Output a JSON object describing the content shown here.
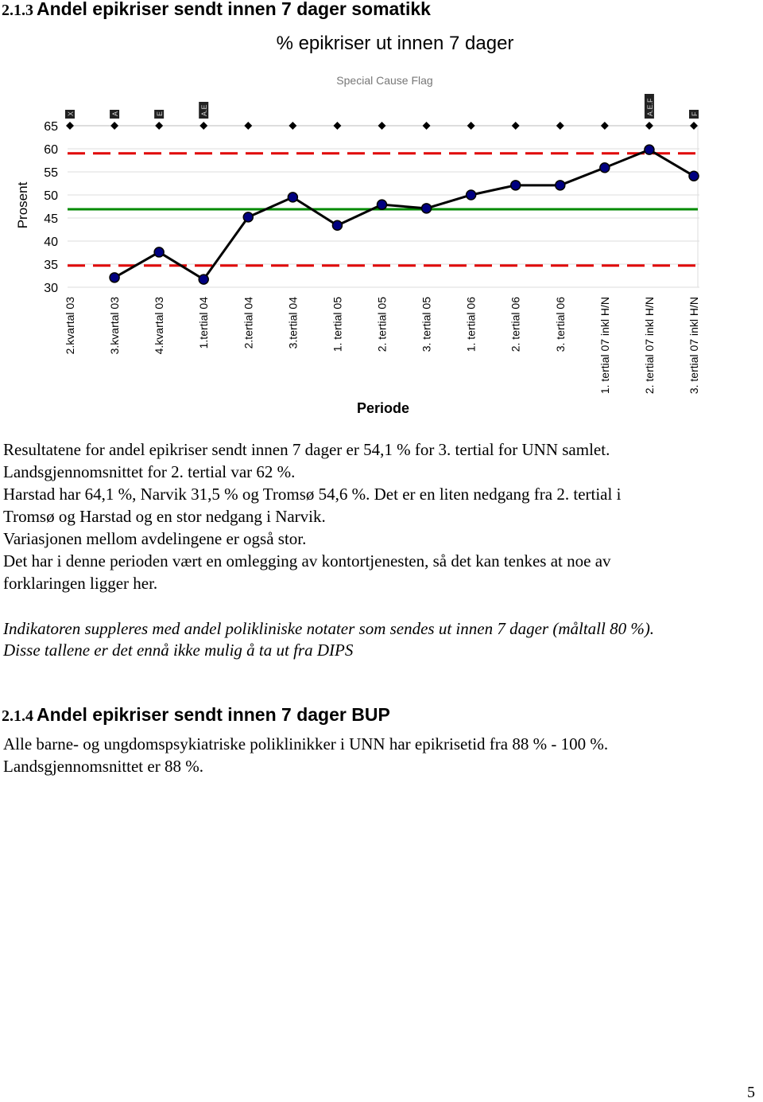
{
  "heading1": {
    "number": "2.1.3",
    "title": "Andel epikriser sendt innen 7 dager somatikk"
  },
  "chart_data": {
    "type": "line",
    "title": "% epikriser ut innen 7 dager",
    "subtitle": "Special Cause Flag",
    "ylabel": "Prosent",
    "xlabel": "Periode",
    "categories": [
      "2.kvartal 03",
      "3.kvartal 03",
      "4.kvartal 03",
      "1.tertial 04",
      "2.tertial 04",
      "3.tertial 04",
      "1. tertial 05",
      "2. tertial 05",
      "3. tertial 05",
      "1. tertial 06",
      "2. tertial 06",
      "3. tertial 06",
      "1. tertial 07 inkl H/N",
      "2. tertial 07 inkl H/N",
      "3. tertial 07 inkl H/N"
    ],
    "series": [
      {
        "color": "#000000",
        "marker_color": "#000080",
        "values": [
          null,
          32.1,
          37.6,
          31.7,
          45.2,
          49.5,
          43.4,
          47.9,
          47.1,
          50.0,
          52.1,
          52.1,
          55.9,
          59.8,
          54.1
        ]
      }
    ],
    "flags": [
      "X",
      "A",
      "E",
      "A.E",
      null,
      null,
      null,
      null,
      null,
      null,
      null,
      null,
      null,
      "A.E.F",
      "F"
    ],
    "reference_lines": [
      {
        "value": 59.0,
        "color": "#e00000",
        "dash": true
      },
      {
        "value": 46.9,
        "color": "#008a00",
        "dash": false
      },
      {
        "value": 34.7,
        "color": "#e00000",
        "dash": true
      }
    ],
    "ylim": [
      30,
      65
    ],
    "yticks": [
      30,
      35,
      40,
      45,
      50,
      55,
      60,
      65
    ],
    "grid": true
  },
  "paragraph1": [
    "Resultatene for andel epikriser sendt innen 7 dager er 54,1 % for 3. tertial for UNN samlet.",
    "Landsgjennomsnittet for 2. tertial var 62 %.",
    "Harstad har 64,1 %, Narvik 31,5 % og Tromsø 54,6 %.  Det er en liten nedgang fra 2. tertial i",
    "Tromsø og Harstad og en stor nedgang i Narvik.",
    "Variasjonen mellom avdelingene er også stor.",
    "Det har i denne perioden vært en omlegging av kontortjenesten, så det kan tenkes at noe av",
    "forklaringen ligger her."
  ],
  "paragraph2": [
    "Indikatoren suppleres med andel polikliniske notater som sendes ut innen 7 dager (måltall 80 %).",
    "Disse tallene er det ennå ikke mulig å ta ut fra DIPS"
  ],
  "heading2": {
    "number": "2.1.4",
    "title": "Andel epikriser sendt innen 7 dager BUP"
  },
  "paragraph3": [
    "Alle barne- og ungdomspsykiatriske poliklinikker i UNN har epikrisetid fra 88 % - 100 %.",
    "Landsgjennomsnittet er 88 %."
  ],
  "page_number": "5"
}
